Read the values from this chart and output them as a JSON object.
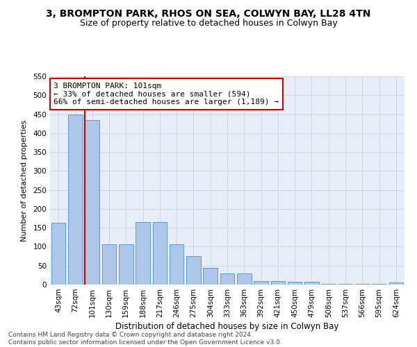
{
  "title1": "3, BROMPTON PARK, RHOS ON SEA, COLWYN BAY, LL28 4TN",
  "title2": "Size of property relative to detached houses in Colwyn Bay",
  "xlabel": "Distribution of detached houses by size in Colwyn Bay",
  "ylabel": "Number of detached properties",
  "categories": [
    "43sqm",
    "72sqm",
    "101sqm",
    "130sqm",
    "159sqm",
    "188sqm",
    "217sqm",
    "246sqm",
    "275sqm",
    "304sqm",
    "333sqm",
    "363sqm",
    "392sqm",
    "421sqm",
    "450sqm",
    "479sqm",
    "508sqm",
    "537sqm",
    "566sqm",
    "595sqm",
    "624sqm"
  ],
  "values": [
    163,
    450,
    435,
    107,
    107,
    165,
    165,
    107,
    75,
    44,
    30,
    30,
    10,
    10,
    8,
    8,
    2,
    2,
    2,
    2,
    5
  ],
  "bar_color": "#aec6e8",
  "bar_edge_color": "#5b9bd5",
  "highlight_index": 2,
  "highlight_line_color": "#cc0000",
  "annotation_text": "3 BROMPTON PARK: 101sqm\n← 33% of detached houses are smaller (594)\n66% of semi-detached houses are larger (1,189) →",
  "annotation_box_color": "#ffffff",
  "annotation_box_edge": "#cc0000",
  "ylim": [
    0,
    550
  ],
  "yticks": [
    0,
    50,
    100,
    150,
    200,
    250,
    300,
    350,
    400,
    450,
    500,
    550
  ],
  "grid_color": "#d0d8e8",
  "bg_color": "#e8eef8",
  "footer": "Contains HM Land Registry data © Crown copyright and database right 2024.\nContains public sector information licensed under the Open Government Licence v3.0.",
  "title1_fontsize": 10,
  "title2_fontsize": 9,
  "xlabel_fontsize": 8.5,
  "ylabel_fontsize": 8,
  "tick_fontsize": 7.5,
  "annotation_fontsize": 8,
  "footer_fontsize": 6.5
}
